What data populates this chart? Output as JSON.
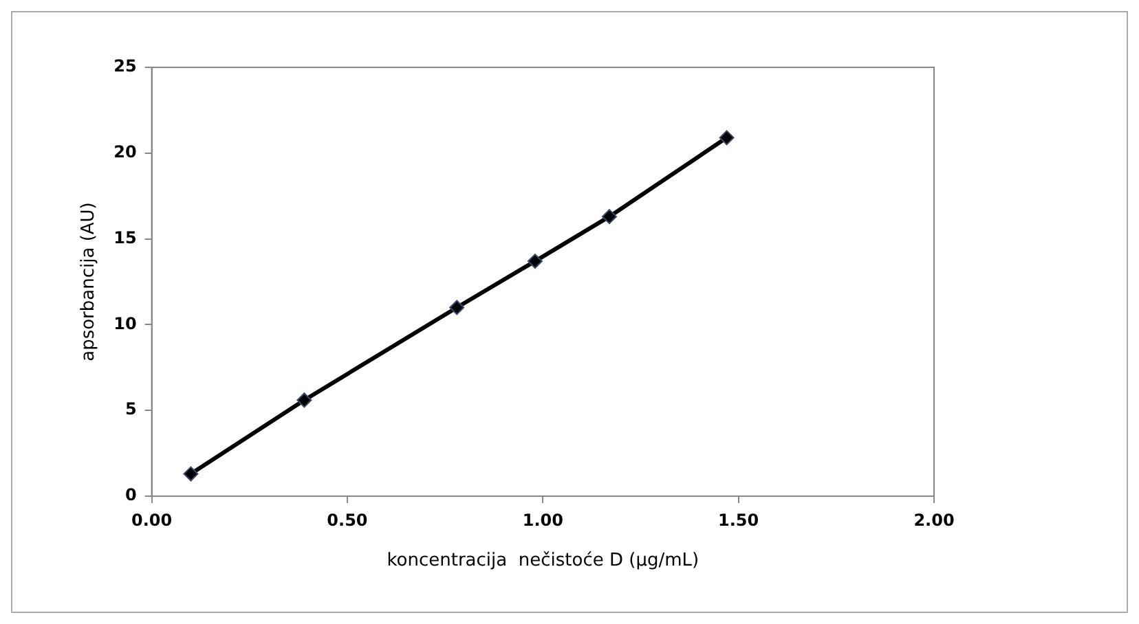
{
  "chart_data": {
    "type": "line",
    "xlabel": "koncentracija  nečistoće D (µg/mL)",
    "ylabel": "apsorbancija (AU)",
    "x": [
      0.1,
      0.39,
      0.78,
      0.98,
      1.17,
      1.47
    ],
    "series": [
      {
        "color": "#000000",
        "values": [
          1.3,
          5.6,
          11.0,
          13.7,
          16.3,
          20.9
        ]
      }
    ],
    "xlim": [
      0,
      2
    ],
    "xticks": [
      {
        "value": 0,
        "label": "0.00"
      },
      {
        "value": 0.5,
        "label": "0.50"
      },
      {
        "value": 1,
        "label": "1.00"
      },
      {
        "value": 1.5,
        "label": "1.50"
      },
      {
        "value": 2,
        "label": "2.00"
      }
    ],
    "ylim": [
      0,
      25
    ],
    "yticks": [
      0,
      5,
      10,
      15,
      20,
      25
    ],
    "grid": false,
    "legend": false,
    "marker": "diamond",
    "line_style": "solid"
  }
}
